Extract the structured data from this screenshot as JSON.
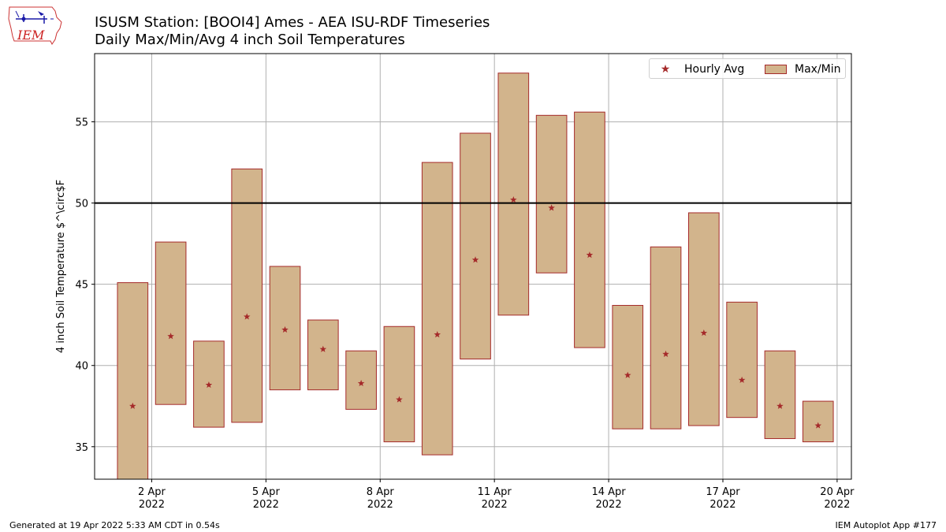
{
  "header": {
    "title_line1": "ISUSM Station: [BOOI4] Ames - AEA ISU-RDF Timeseries",
    "title_line2": "Daily Max/Min/Avg 4 inch Soil Temperatures"
  },
  "logo": {
    "text": "IEM",
    "icon": "iowa-state-outline-icon"
  },
  "footer": {
    "left": "Generated at 19 Apr 2022 5:33 AM CDT in 0.54s",
    "right": "IEM Autoplot App #177"
  },
  "colors": {
    "bar_fill": "#d2b48c",
    "bar_edge": "#a52a2a",
    "avg_marker": "#a52a2a",
    "reference_line": "#000000",
    "grid": "#b0b0b0"
  },
  "chart_data": {
    "type": "bar",
    "ylabel": "4 inch Soil Temperature $^\\circ$F",
    "ylim": [
      33.0,
      59.2
    ],
    "xlim": [
      "2022-03-31T12:00",
      "2022-04-20T09:00"
    ],
    "yticks": [
      35,
      40,
      45,
      50,
      55
    ],
    "xticks": [
      {
        "date": "2022-04-02",
        "label1": "2 Apr",
        "label2": "2022"
      },
      {
        "date": "2022-04-05",
        "label1": "5 Apr",
        "label2": "2022"
      },
      {
        "date": "2022-04-08",
        "label1": "8 Apr",
        "label2": "2022"
      },
      {
        "date": "2022-04-11",
        "label1": "11 Apr",
        "label2": "2022"
      },
      {
        "date": "2022-04-14",
        "label1": "14 Apr",
        "label2": "2022"
      },
      {
        "date": "2022-04-17",
        "label1": "17 Apr",
        "label2": "2022"
      },
      {
        "date": "2022-04-20",
        "label1": "20 Apr",
        "label2": "2022"
      }
    ],
    "grid": true,
    "reference_line": 50,
    "legend": {
      "placement": "top-right",
      "entries": [
        "Hourly Avg",
        "Max/Min"
      ]
    },
    "days": [
      {
        "date": "2022-04-01",
        "min": 33.0,
        "max": 45.1,
        "avg": 37.5
      },
      {
        "date": "2022-04-02",
        "min": 37.6,
        "max": 47.6,
        "avg": 41.8
      },
      {
        "date": "2022-04-03",
        "min": 36.2,
        "max": 41.5,
        "avg": 38.8
      },
      {
        "date": "2022-04-04",
        "min": 36.5,
        "max": 52.1,
        "avg": 43.0
      },
      {
        "date": "2022-04-05",
        "min": 38.5,
        "max": 46.1,
        "avg": 42.2
      },
      {
        "date": "2022-04-06",
        "min": 38.5,
        "max": 42.8,
        "avg": 41.0
      },
      {
        "date": "2022-04-07",
        "min": 37.3,
        "max": 40.9,
        "avg": 38.9
      },
      {
        "date": "2022-04-08",
        "min": 35.3,
        "max": 42.4,
        "avg": 37.9
      },
      {
        "date": "2022-04-09",
        "min": 34.5,
        "max": 52.5,
        "avg": 41.9
      },
      {
        "date": "2022-04-10",
        "min": 40.4,
        "max": 54.3,
        "avg": 46.5
      },
      {
        "date": "2022-04-11",
        "min": 43.1,
        "max": 58.0,
        "avg": 50.2
      },
      {
        "date": "2022-04-12",
        "min": 45.7,
        "max": 55.4,
        "avg": 49.7
      },
      {
        "date": "2022-04-13",
        "min": 41.1,
        "max": 55.6,
        "avg": 46.8
      },
      {
        "date": "2022-04-14",
        "min": 36.1,
        "max": 43.7,
        "avg": 39.4
      },
      {
        "date": "2022-04-15",
        "min": 36.1,
        "max": 47.3,
        "avg": 40.7
      },
      {
        "date": "2022-04-16",
        "min": 36.3,
        "max": 49.4,
        "avg": 42.0
      },
      {
        "date": "2022-04-17",
        "min": 36.8,
        "max": 43.9,
        "avg": 39.1
      },
      {
        "date": "2022-04-18",
        "min": 35.5,
        "max": 40.9,
        "avg": 37.5
      },
      {
        "date": "2022-04-19",
        "min": 35.3,
        "max": 37.8,
        "avg": 36.3
      }
    ]
  }
}
